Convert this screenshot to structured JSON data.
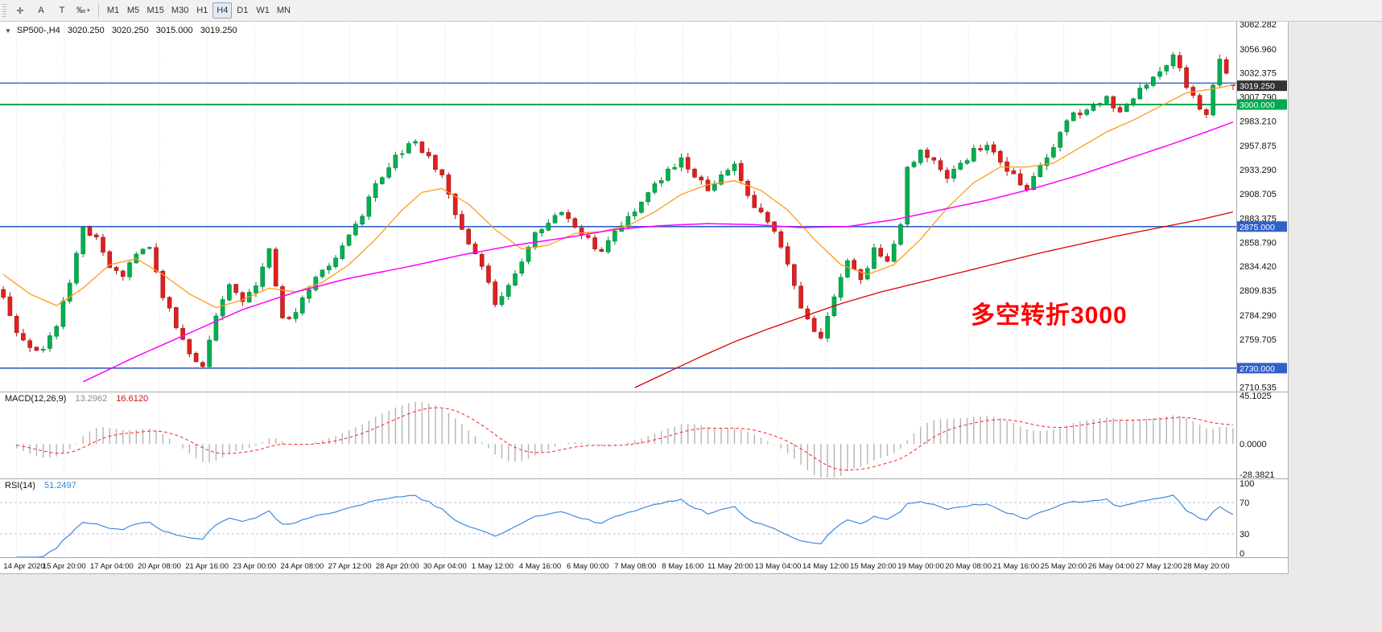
{
  "toolbar": {
    "tools": [
      {
        "name": "crosshair-tool",
        "glyph": "✛"
      },
      {
        "name": "annotation-a-tool",
        "glyph": "A"
      },
      {
        "name": "annotation-t-tool",
        "glyph": "T"
      },
      {
        "name": "scale-tool",
        "glyph": "‰",
        "caret": "▾"
      }
    ],
    "timeframes": [
      "M1",
      "M5",
      "M15",
      "M30",
      "H1",
      "H4",
      "D1",
      "W1",
      "MN"
    ],
    "active_timeframe": "H4"
  },
  "chart": {
    "header": {
      "marker": "▼",
      "symbol": "SP500-,H4",
      "open": "3020.250",
      "high": "3020.250",
      "low": "3015.000",
      "close": "3019.250"
    },
    "annotation": {
      "text": "多空转折3000",
      "color": "#ff0000"
    }
  },
  "price_axis": {
    "ticks": [
      {
        "label": "3082.282",
        "value": 3082.282
      },
      {
        "label": "3056.960",
        "value": 3056.96
      },
      {
        "label": "3032.375",
        "value": 3032.375
      },
      {
        "label": "3007.790",
        "value": 3007.79
      },
      {
        "label": "2983.210",
        "value": 2983.21
      },
      {
        "label": "2957.875",
        "value": 2957.875
      },
      {
        "label": "2933.290",
        "value": 2933.29
      },
      {
        "label": "2908.705",
        "value": 2908.705
      },
      {
        "label": "2883.375",
        "value": 2883.375
      },
      {
        "label": "2858.790",
        "value": 2858.79
      },
      {
        "label": "2834.420",
        "value": 2834.42
      },
      {
        "label": "2809.835",
        "value": 2809.835
      },
      {
        "label": "2784.290",
        "value": 2784.29
      },
      {
        "label": "2759.705",
        "value": 2759.705
      },
      {
        "label": "2710.535",
        "value": 2710.535
      }
    ],
    "tags": [
      {
        "name": "current-price-tag",
        "label": "3019.250",
        "value": 3019.25,
        "bg": "#333333",
        "fg": "#ffffff"
      },
      {
        "name": "level-tag-3000",
        "label": "3000.000",
        "value": 3000.0,
        "bg": "#00a94f",
        "fg": "#ffffff"
      },
      {
        "name": "level-tag-2875",
        "label": "2875.000",
        "value": 2875.0,
        "bg": "#3060c8",
        "fg": "#ffffff"
      },
      {
        "name": "level-tag-2730",
        "label": "2730.000",
        "value": 2730.0,
        "bg": "#3060c8",
        "fg": "#ffffff"
      }
    ]
  },
  "chart_data": {
    "type": "candlestick",
    "symbol": "SP500-",
    "timeframe": "H4",
    "bars": 186,
    "price_range": [
      2706,
      3084
    ],
    "last": {
      "open": 3020.25,
      "high": 3020.25,
      "low": 3015.0,
      "close": 3019.25
    },
    "up_color": "#00b050",
    "up_border": "#00813a",
    "down_color": "#e02020",
    "down_border": "#a31515",
    "close_anchors": [
      [
        0,
        2802
      ],
      [
        2,
        2768
      ],
      [
        4,
        2752
      ],
      [
        6,
        2748
      ],
      [
        8,
        2772
      ],
      [
        10,
        2820
      ],
      [
        12,
        2872
      ],
      [
        14,
        2862
      ],
      [
        16,
        2834
      ],
      [
        18,
        2822
      ],
      [
        20,
        2848
      ],
      [
        22,
        2852
      ],
      [
        24,
        2805
      ],
      [
        26,
        2772
      ],
      [
        28,
        2742
      ],
      [
        30,
        2732
      ],
      [
        32,
        2780
      ],
      [
        34,
        2814
      ],
      [
        36,
        2800
      ],
      [
        38,
        2812
      ],
      [
        40,
        2850
      ],
      [
        42,
        2778
      ],
      [
        44,
        2790
      ],
      [
        46,
        2812
      ],
      [
        48,
        2828
      ],
      [
        50,
        2842
      ],
      [
        52,
        2868
      ],
      [
        54,
        2888
      ],
      [
        56,
        2918
      ],
      [
        58,
        2938
      ],
      [
        60,
        2952
      ],
      [
        62,
        2963
      ],
      [
        64,
        2945
      ],
      [
        66,
        2928
      ],
      [
        68,
        2890
      ],
      [
        70,
        2858
      ],
      [
        72,
        2835
      ],
      [
        74,
        2795
      ],
      [
        76,
        2812
      ],
      [
        78,
        2840
      ],
      [
        80,
        2868
      ],
      [
        82,
        2880
      ],
      [
        84,
        2892
      ],
      [
        86,
        2875
      ],
      [
        88,
        2862
      ],
      [
        90,
        2848
      ],
      [
        92,
        2868
      ],
      [
        94,
        2885
      ],
      [
        96,
        2902
      ],
      [
        98,
        2918
      ],
      [
        100,
        2932
      ],
      [
        102,
        2942
      ],
      [
        104,
        2928
      ],
      [
        106,
        2915
      ],
      [
        108,
        2928
      ],
      [
        110,
        2936
      ],
      [
        112,
        2905
      ],
      [
        114,
        2888
      ],
      [
        116,
        2868
      ],
      [
        118,
        2835
      ],
      [
        120,
        2792
      ],
      [
        122,
        2770
      ],
      [
        123,
        2763
      ],
      [
        125,
        2800
      ],
      [
        127,
        2843
      ],
      [
        129,
        2818
      ],
      [
        131,
        2852
      ],
      [
        133,
        2836
      ],
      [
        135,
        2880
      ],
      [
        136,
        2938
      ],
      [
        138,
        2950
      ],
      [
        140,
        2942
      ],
      [
        142,
        2926
      ],
      [
        144,
        2940
      ],
      [
        146,
        2952
      ],
      [
        148,
        2956
      ],
      [
        150,
        2940
      ],
      [
        152,
        2928
      ],
      [
        154,
        2912
      ],
      [
        156,
        2938
      ],
      [
        158,
        2958
      ],
      [
        160,
        2985
      ],
      [
        162,
        2992
      ],
      [
        164,
        3000
      ],
      [
        166,
        3006
      ],
      [
        168,
        2990
      ],
      [
        170,
        3005
      ],
      [
        172,
        3022
      ],
      [
        174,
        3036
      ],
      [
        176,
        3050
      ],
      [
        178,
        3020
      ],
      [
        180,
        2995
      ],
      [
        181,
        2990
      ],
      [
        183,
        3046
      ],
      [
        185,
        3019.25
      ]
    ],
    "moving_averages": [
      {
        "name": "ma-fast",
        "color": "#ff9b18",
        "width": 1.3,
        "anchors": [
          [
            0,
            2826
          ],
          [
            4,
            2806
          ],
          [
            8,
            2794
          ],
          [
            12,
            2812
          ],
          [
            16,
            2836
          ],
          [
            20,
            2842
          ],
          [
            24,
            2826
          ],
          [
            28,
            2806
          ],
          [
            32,
            2792
          ],
          [
            36,
            2800
          ],
          [
            40,
            2812
          ],
          [
            44,
            2808
          ],
          [
            48,
            2818
          ],
          [
            52,
            2836
          ],
          [
            56,
            2862
          ],
          [
            60,
            2892
          ],
          [
            63,
            2910
          ],
          [
            66,
            2914
          ],
          [
            70,
            2898
          ],
          [
            74,
            2872
          ],
          [
            78,
            2852
          ],
          [
            82,
            2856
          ],
          [
            86,
            2868
          ],
          [
            90,
            2870
          ],
          [
            94,
            2876
          ],
          [
            98,
            2890
          ],
          [
            102,
            2908
          ],
          [
            106,
            2918
          ],
          [
            110,
            2922
          ],
          [
            114,
            2912
          ],
          [
            118,
            2892
          ],
          [
            122,
            2862
          ],
          [
            126,
            2836
          ],
          [
            130,
            2826
          ],
          [
            134,
            2836
          ],
          [
            138,
            2862
          ],
          [
            142,
            2894
          ],
          [
            146,
            2920
          ],
          [
            150,
            2936
          ],
          [
            154,
            2936
          ],
          [
            158,
            2940
          ],
          [
            162,
            2956
          ],
          [
            166,
            2972
          ],
          [
            170,
            2984
          ],
          [
            174,
            2998
          ],
          [
            178,
            3012
          ],
          [
            182,
            3016
          ],
          [
            185,
            3020
          ]
        ]
      },
      {
        "name": "ma-mid",
        "color": "#ff00ff",
        "width": 1.5,
        "anchors": [
          [
            12,
            2716
          ],
          [
            20,
            2742
          ],
          [
            28,
            2766
          ],
          [
            36,
            2790
          ],
          [
            44,
            2808
          ],
          [
            52,
            2822
          ],
          [
            61,
            2834
          ],
          [
            69,
            2846
          ],
          [
            77,
            2856
          ],
          [
            85,
            2864
          ],
          [
            92,
            2872
          ],
          [
            99,
            2876
          ],
          [
            106,
            2878
          ],
          [
            113,
            2877
          ],
          [
            120,
            2874
          ],
          [
            127,
            2875
          ],
          [
            134,
            2882
          ],
          [
            141,
            2892
          ],
          [
            148,
            2902
          ],
          [
            155,
            2914
          ],
          [
            162,
            2928
          ],
          [
            169,
            2944
          ],
          [
            176,
            2960
          ],
          [
            181,
            2972
          ],
          [
            185,
            2982
          ]
        ]
      },
      {
        "name": "ma-slow",
        "color": "#e00000",
        "width": 1.3,
        "anchors": [
          [
            95,
            2710
          ],
          [
            100,
            2726
          ],
          [
            105,
            2742
          ],
          [
            110,
            2757
          ],
          [
            115,
            2770
          ],
          [
            120,
            2782
          ],
          [
            126,
            2796
          ],
          [
            132,
            2808
          ],
          [
            138,
            2818
          ],
          [
            144,
            2828
          ],
          [
            150,
            2838
          ],
          [
            156,
            2848
          ],
          [
            162,
            2857
          ],
          [
            168,
            2866
          ],
          [
            174,
            2874
          ],
          [
            180,
            2882
          ],
          [
            185,
            2890
          ]
        ]
      }
    ],
    "hlines": [
      {
        "name": "resistance-line-3022",
        "value": 3022,
        "color": "#3060c8",
        "width": 1.4
      },
      {
        "name": "pivot-line-3000",
        "value": 3000,
        "color": "#00a94f",
        "width": 2
      },
      {
        "name": "support-line-2875",
        "value": 2875,
        "color": "#3060c8",
        "width": 1.6
      },
      {
        "name": "support-line-2730",
        "value": 2730,
        "color": "#3060c8",
        "width": 1.6
      }
    ],
    "macd": {
      "label": "MACD(12,26,9)",
      "main_value": "13.2962",
      "signal_value": "16.6120",
      "fast": 12,
      "slow": 26,
      "signal": 9,
      "range": [
        -32,
        48
      ],
      "axis_ticks": [
        {
          "label": "45.1025",
          "value": 45.1025
        },
        {
          "label": "0.0000",
          "value": 0
        },
        {
          "label": "-28.3821",
          "value": -28.3821
        }
      ],
      "hist_color": "#b4b4b4",
      "signal_color": "#ff2020"
    },
    "rsi": {
      "label": "RSI(14)",
      "value": "51.2497",
      "period": 14,
      "range": [
        0,
        100
      ],
      "levels": [
        70,
        30
      ],
      "axis_ticks": [
        {
          "label": "100",
          "value": 100
        },
        {
          "label": "70",
          "value": 70
        },
        {
          "label": "30",
          "value": 30
        },
        {
          "label": "0",
          "value": 0
        }
      ],
      "color": "#3c8ae0",
      "level_color": "#bdbdda"
    },
    "time_labels": [
      "14 Apr 2020",
      "15 Apr 20:00",
      "17 Apr 04:00",
      "20 Apr 08:00",
      "21 Apr 16:00",
      "23 Apr 00:00",
      "24 Apr 08:00",
      "27 Apr 12:00",
      "28 Apr 20:00",
      "30 Apr 04:00",
      "1 May 12:00",
      "4 May 16:00",
      "6 May 00:00",
      "7 May 08:00",
      "8 May 16:00",
      "11 May 20:00",
      "13 May 04:00",
      "14 May 12:00",
      "15 May 20:00",
      "19 May 00:00",
      "20 May 08:00",
      "21 May 16:00",
      "25 May 20:00",
      "26 May 04:00",
      "27 May 12:00",
      "28 May 20:00"
    ]
  }
}
